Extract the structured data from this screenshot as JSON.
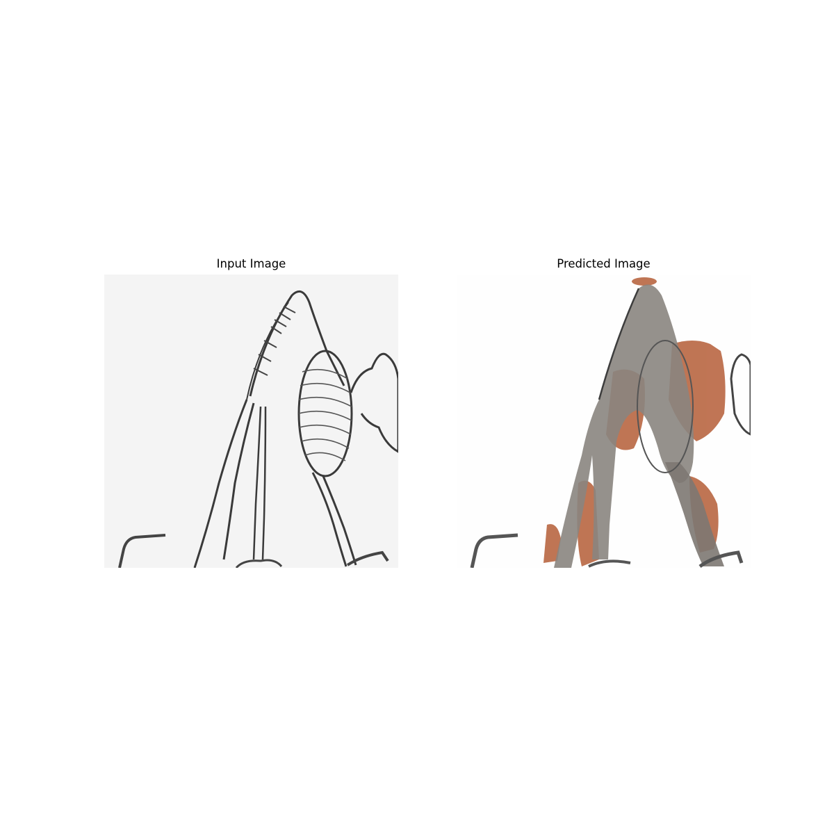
{
  "figure": {
    "panels": [
      {
        "title": "Input Image",
        "image_icon": "skeleton-sketch-image",
        "background_color": "#f4f4f4",
        "line_color": "#3a3a3a"
      },
      {
        "title": "Predicted Image",
        "image_icon": "colorized-skeleton-image",
        "background_color": "#fefefe",
        "fill_color": "#8a8580",
        "accent_color": "#b0532a"
      }
    ]
  }
}
